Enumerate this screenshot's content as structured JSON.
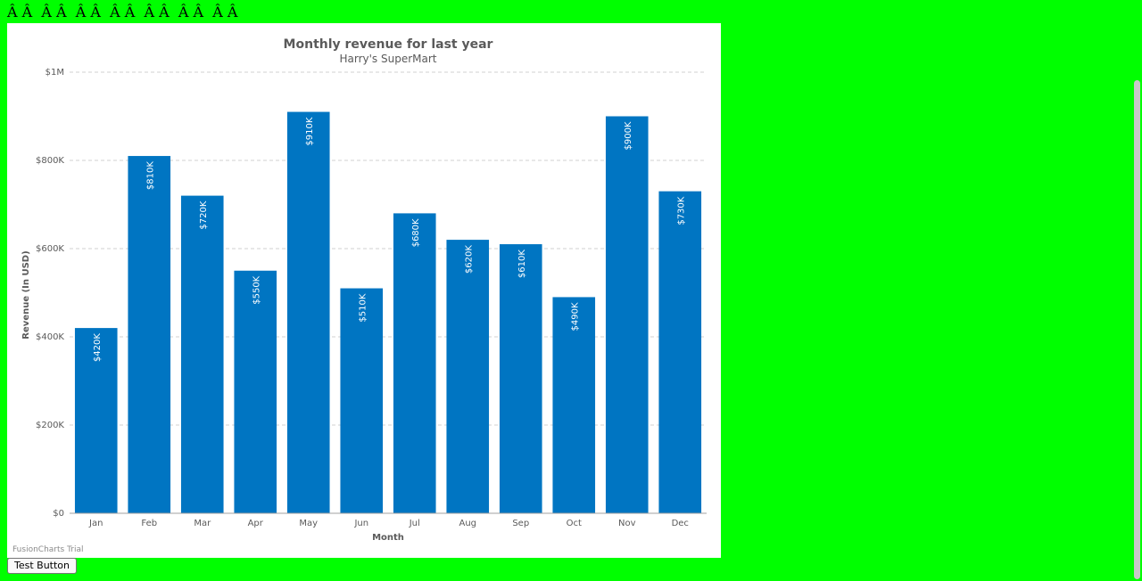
{
  "page": {
    "mojibake_text": "Â Â  Â Â  Â Â  Â Â  Â Â  Â Â  Â Â",
    "test_button_label": "Test Button"
  },
  "chart_data": {
    "type": "bar",
    "title": "Monthly revenue for last year",
    "subtitle": "Harry's SuperMart",
    "xlabel": "Month",
    "ylabel": "Revenue (In USD)",
    "categories": [
      "Jan",
      "Feb",
      "Mar",
      "Apr",
      "May",
      "Jun",
      "Jul",
      "Aug",
      "Sep",
      "Oct",
      "Nov",
      "Dec"
    ],
    "values": [
      420000,
      810000,
      720000,
      550000,
      910000,
      510000,
      680000,
      620000,
      610000,
      490000,
      900000,
      730000
    ],
    "data_labels": [
      "$420K",
      "$810K",
      "$720K",
      "$550K",
      "$910K",
      "$510K",
      "$680K",
      "$620K",
      "$610K",
      "$490K",
      "$900K",
      "$730K"
    ],
    "ylim": [
      0,
      1000000
    ],
    "y_ticks": [
      0,
      200000,
      400000,
      600000,
      800000,
      1000000
    ],
    "y_tick_labels": [
      "$0",
      "$200K",
      "$400K",
      "$600K",
      "$800K",
      "$1M"
    ],
    "grid": true,
    "bar_color": "#0075c2",
    "watermark": "FusionCharts Trial"
  }
}
